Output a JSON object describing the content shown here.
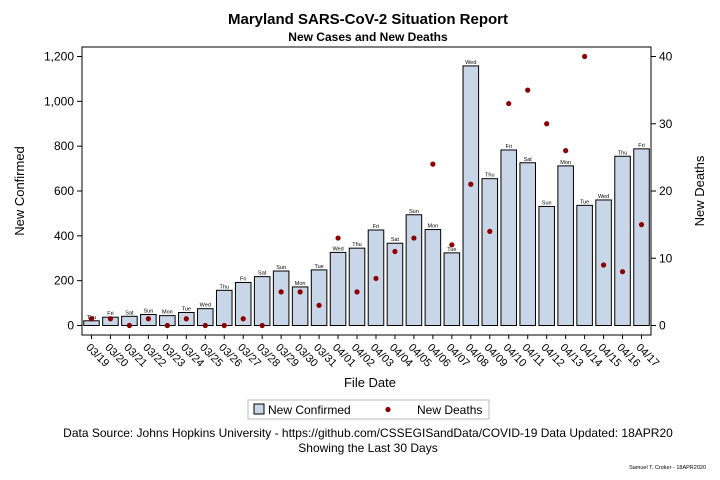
{
  "chart_data": {
    "type": "bar",
    "title": "Maryland SARS-CoV-2 Situation Report",
    "subtitle": "New Cases and New Deaths",
    "xlabel": "File Date",
    "ylabel": "New Confirmed",
    "y2label": "New Deaths",
    "ylim": [
      0,
      1200
    ],
    "y2lim": [
      0,
      40
    ],
    "yticks": [
      "0",
      "200",
      "400",
      "600",
      "800",
      "1,000",
      "1,200"
    ],
    "y2ticks": [
      "0",
      "10",
      "20",
      "30",
      "40"
    ],
    "categories": [
      "03/19",
      "03/20",
      "03/21",
      "03/22",
      "03/23",
      "03/24",
      "03/25",
      "03/26",
      "03/27",
      "03/28",
      "03/29",
      "03/30",
      "03/31",
      "04/01",
      "04/02",
      "04/03",
      "04/04",
      "04/05",
      "04/06",
      "04/07",
      "04/08",
      "04/09",
      "04/10",
      "04/11",
      "04/12",
      "04/13",
      "04/14",
      "04/15",
      "04/16",
      "04/17"
    ],
    "days": [
      "Thu",
      "Fri",
      "Sat",
      "Sun",
      "Mon",
      "Tue",
      "Wed",
      "Thu",
      "Fri",
      "Sat",
      "Sun",
      "Mon",
      "Tue",
      "Wed",
      "Thu",
      "Fri",
      "Sat",
      "Sun",
      "Mon",
      "Tue",
      "Wed",
      "Thu",
      "Fri",
      "Sat",
      "Sun",
      "Mon",
      "Tue",
      "Wed",
      "Thu",
      "Fri"
    ],
    "series": [
      {
        "name": "New Confirmed",
        "type": "bar",
        "axis": "left",
        "color": "#c9d6e8",
        "values": [
          21,
          37,
          41,
          49,
          44,
          58,
          75,
          157,
          192,
          218,
          243,
          172,
          248,
          326,
          345,
          426,
          367,
          494,
          428,
          324,
          1158,
          655,
          783,
          726,
          531,
          712,
          536,
          560,
          755,
          788
        ]
      },
      {
        "name": "New Deaths",
        "type": "scatter",
        "axis": "right",
        "color": "#8b0000",
        "values": [
          1,
          1,
          0,
          1,
          0,
          1,
          0,
          0,
          1,
          0,
          5,
          5,
          3,
          13,
          5,
          7,
          11,
          13,
          24,
          12,
          21,
          14,
          33,
          35,
          30,
          26,
          40,
          9,
          8,
          15
        ]
      }
    ],
    "legend": {
      "placement": "bottom"
    },
    "grid": false
  },
  "footnote": {
    "line1": "Data Source: Johns Hopkins University - https://github.com/CSSEGISandData/COVID-19 Data Updated: 18APR20",
    "line2": "Showing the Last 30 Days"
  },
  "credit": "Samuel T. Croker - 18APR2020"
}
